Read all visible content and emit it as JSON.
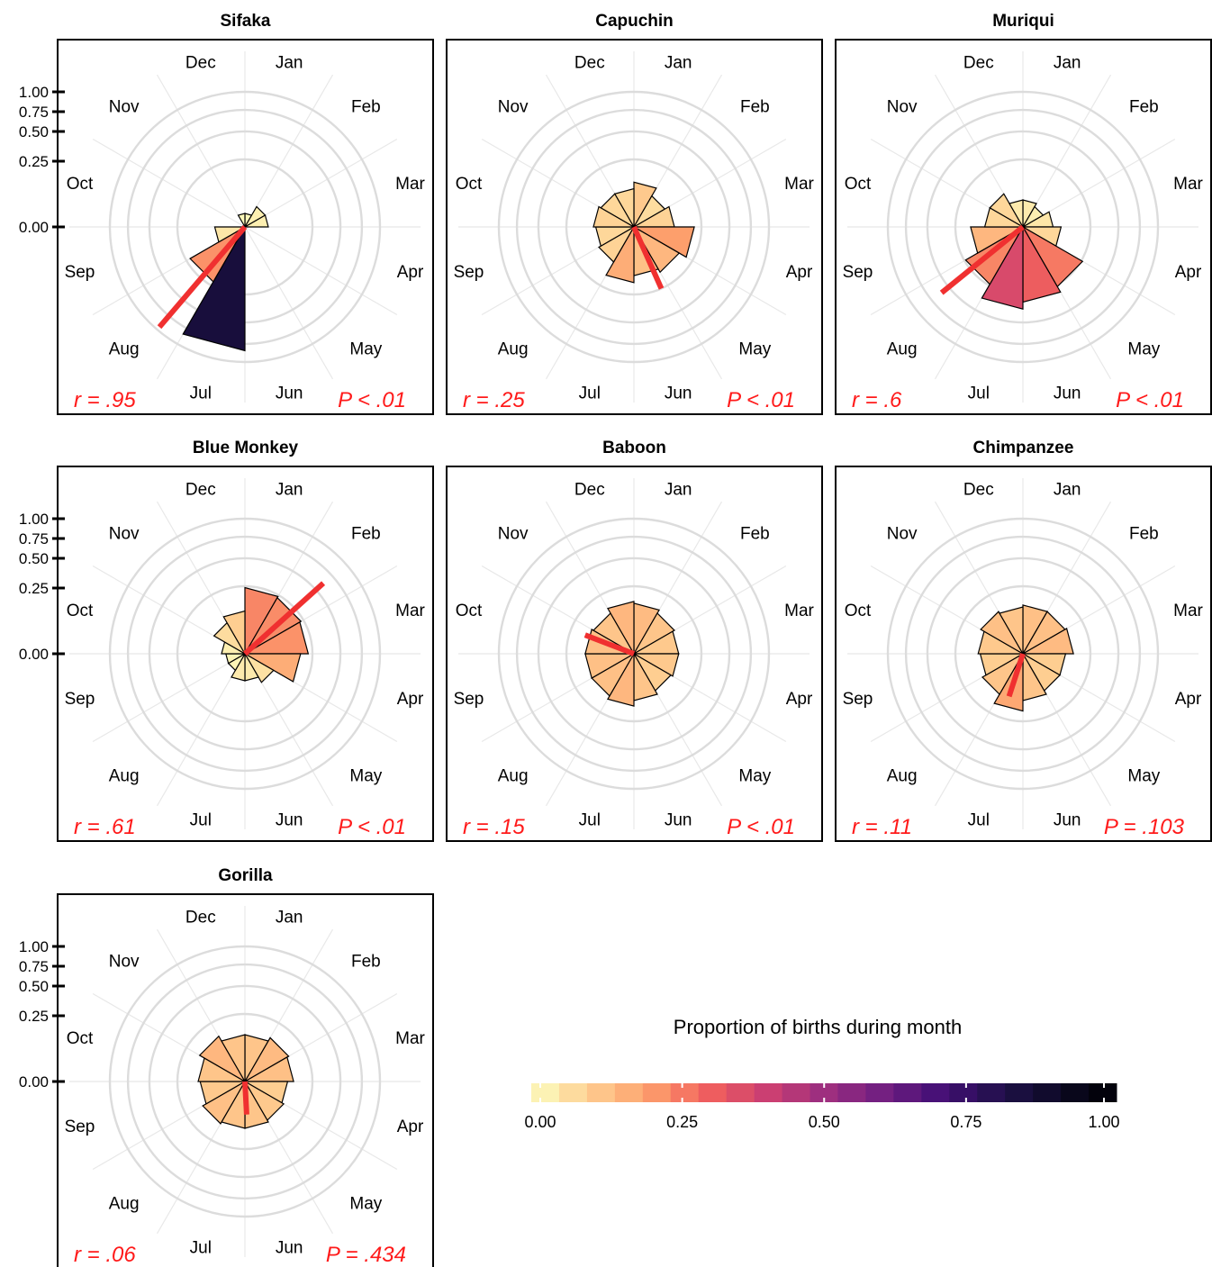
{
  "chart_data": {
    "type": "polar-bar",
    "months": [
      "Jan",
      "Feb",
      "Mar",
      "Apr",
      "May",
      "Jun",
      "Jul",
      "Aug",
      "Sep",
      "Oct",
      "Nov",
      "Dec"
    ],
    "radial_ticks": [
      "0.00",
      "0.25",
      "0.50",
      "0.75",
      "1.00"
    ],
    "radial_tick_values": [
      0,
      0.25,
      0.5,
      0.75,
      1.0
    ],
    "panels": [
      {
        "title": "Sifaka",
        "r": 0.95,
        "r_text": "r = .95",
        "p_text": "P < .01",
        "mean_month": 7.35,
        "values": [
          0.01,
          0.03,
          0.03,
          0,
          0,
          0,
          0.84,
          0.22,
          0.05,
          0,
          0,
          0.01
        ]
      },
      {
        "title": "Capuchin",
        "r": 0.25,
        "r_text": "r = .25",
        "p_text": "P < .01",
        "mean_month": 5.2,
        "values": [
          0.11,
          0.07,
          0.09,
          0.2,
          0.15,
          0.13,
          0.17,
          0.09,
          0.08,
          0.09,
          0.08,
          0.08
        ]
      },
      {
        "title": "Muriqui",
        "r": 0.6,
        "r_text": "r = .6",
        "p_text": "P < .01",
        "mean_month": 7.7,
        "values": [
          0.04,
          0.03,
          0.05,
          0.08,
          0.26,
          0.31,
          0.37,
          0.24,
          0.15,
          0.08,
          0.08,
          0.04
        ]
      },
      {
        "title": "Blue Monkey",
        "r": 0.61,
        "r_text": "r = .61",
        "p_text": "P < .01",
        "mean_month": 1.6,
        "values": [
          0.24,
          0.23,
          0.22,
          0.17,
          0.06,
          0.04,
          0.04,
          0.02,
          0.02,
          0.03,
          0.07,
          0.1
        ]
      },
      {
        "title": "Baboon",
        "r": 0.15,
        "r_text": "r = .15",
        "p_text": "P < .01",
        "mean_month": 9.7,
        "values": [
          0.14,
          0.12,
          0.11,
          0.11,
          0.1,
          0.12,
          0.15,
          0.13,
          0.13,
          0.13,
          0.12,
          0.15
        ]
      },
      {
        "title": "Chimpanzee",
        "r": 0.11,
        "r_text": "r = .11",
        "p_text": "P = .103",
        "mean_month": 6.6,
        "values": [
          0.13,
          0.13,
          0.14,
          0.1,
          0.1,
          0.12,
          0.18,
          0.12,
          0.1,
          0.11,
          0.13,
          0.12
        ]
      },
      {
        "title": "Gorilla",
        "r": 0.06,
        "r_text": "r = .06",
        "p_text": "P = .434",
        "mean_month": 5.9,
        "values": [
          0.12,
          0.14,
          0.13,
          0.1,
          0.11,
          0.12,
          0.12,
          0.13,
          0.11,
          0.12,
          0.15,
          0.12
        ]
      }
    ],
    "legend": {
      "title": "Proportion of births during month",
      "ticks": [
        "0.00",
        "0.25",
        "0.50",
        "0.75",
        "1.00"
      ],
      "tick_values": [
        0,
        0.25,
        0.5,
        0.75,
        1.0
      ],
      "palette": "magma-reversed"
    }
  },
  "colors": {
    "mean_vector": "#f03030",
    "stat_text": "#ff1a1a",
    "grid": "#dcdcdc",
    "frame": "#000000"
  }
}
